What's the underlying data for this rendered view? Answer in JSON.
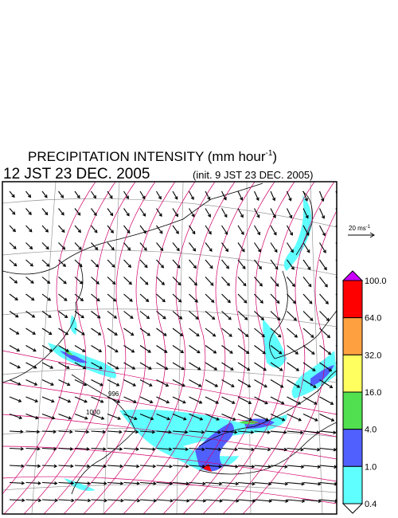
{
  "header": {
    "title_main": "PRECIPITATION INTENSITY (mm hour",
    "title_sup": "-1",
    "title_end": ")",
    "valid_time": "12 JST 23 DEC. 2005",
    "init_time": "(init. 9 JST 23 DEC. 2005)"
  },
  "scale_arrow": {
    "label": "20 ms",
    "label_sup": "-1"
  },
  "map": {
    "contour_labels": [
      "996",
      "1000"
    ]
  },
  "colorbar": {
    "labels": [
      "100.0",
      "64.0",
      "32.0",
      "16.0",
      "4.0",
      "1.0",
      "0.4"
    ],
    "colors": [
      "#ff0000",
      "#ffa040",
      "#ffff60",
      "#50e050",
      "#5060ff",
      "#60ffff"
    ],
    "top_color": "#cc00ff",
    "bottom_color": "#ffffff"
  }
}
